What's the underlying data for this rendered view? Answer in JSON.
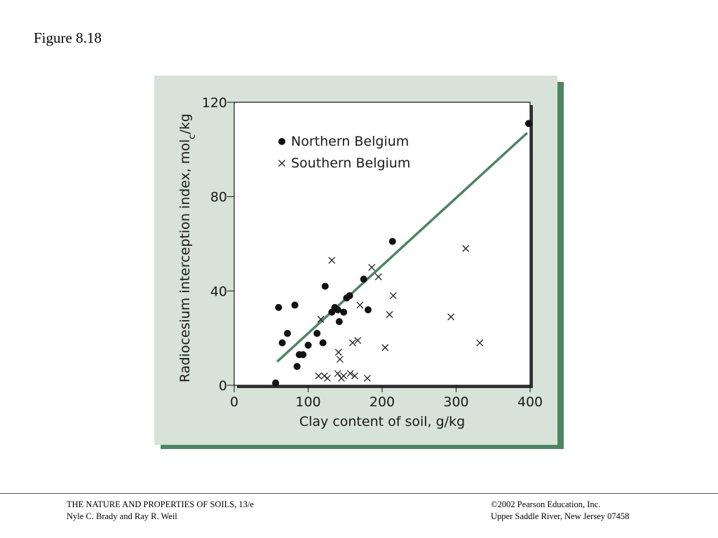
{
  "slide": {
    "title": "Figure 8.18"
  },
  "footer": {
    "left_line1": "THE NATURE AND PROPERTIES OF SOILS, 13/e",
    "left_line2": "Nyle C. Brady and Ray R. Weil",
    "right_line1": "©2002 Pearson Education, Inc.",
    "right_line2": "Upper Saddle River, New Jersey  07458"
  },
  "colors": {
    "panel_background": "#d7e2d8",
    "panel_shadow": "#4e8463",
    "regression_line": "#4e8463",
    "plot_background": "#ffffff"
  },
  "chart_data": {
    "type": "scatter",
    "title": "",
    "xlabel": "Clay content of soil, g/kg",
    "ylabel_main": "Radiocesium interception index, mol",
    "ylabel_sub": "c",
    "ylabel_tail": "/kg",
    "xlim": [
      0,
      400
    ],
    "ylim": [
      0,
      120
    ],
    "xticks": [
      0,
      100,
      200,
      300,
      400
    ],
    "yticks": [
      0,
      40,
      80,
      120
    ],
    "grid": false,
    "legend_position": "top-left",
    "series": [
      {
        "name": "Northern Belgium",
        "marker": "filled-circle",
        "points": [
          [
            56,
            1
          ],
          [
            60,
            33
          ],
          [
            65,
            18
          ],
          [
            72,
            22
          ],
          [
            82,
            34
          ],
          [
            85,
            8
          ],
          [
            88,
            13
          ],
          [
            93,
            13
          ],
          [
            100,
            17
          ],
          [
            112,
            22
          ],
          [
            120,
            18
          ],
          [
            123,
            42
          ],
          [
            132,
            31
          ],
          [
            136,
            33
          ],
          [
            140,
            32
          ],
          [
            142,
            27
          ],
          [
            148,
            31
          ],
          [
            152,
            37
          ],
          [
            156,
            38
          ],
          [
            175,
            45
          ],
          [
            181,
            32
          ],
          [
            214,
            61
          ],
          [
            398,
            111
          ]
        ]
      },
      {
        "name": "Southern Belgium",
        "marker": "x",
        "points": [
          [
            114,
            4
          ],
          [
            117,
            28
          ],
          [
            122,
            4
          ],
          [
            126,
            3
          ],
          [
            132,
            53
          ],
          [
            140,
            5
          ],
          [
            141,
            14
          ],
          [
            143,
            11
          ],
          [
            145,
            3
          ],
          [
            148,
            4
          ],
          [
            157,
            5
          ],
          [
            160,
            18
          ],
          [
            163,
            4
          ],
          [
            167,
            19
          ],
          [
            170,
            34
          ],
          [
            180,
            3
          ],
          [
            186,
            50
          ],
          [
            195,
            46
          ],
          [
            204,
            16
          ],
          [
            210,
            30
          ],
          [
            215,
            38
          ],
          [
            293,
            29
          ],
          [
            313,
            58
          ],
          [
            332,
            18
          ]
        ]
      }
    ],
    "trendline": {
      "x": [
        58,
        396
      ],
      "y": [
        10,
        107
      ]
    }
  }
}
